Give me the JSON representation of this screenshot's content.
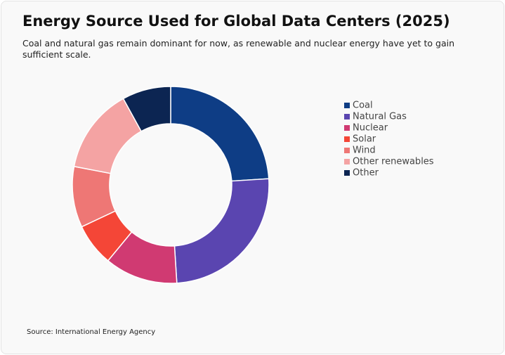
{
  "chart_data": {
    "type": "donut",
    "title": "Energy Source Used for Global Data Centers (2025)",
    "subtitle": "Coal and natural gas remain dominant for now, as renewable and nuclear energy have yet to gain sufficient scale.",
    "source": "Source: International Energy Agency",
    "categories": [
      "Coal",
      "Natural Gas",
      "Nuclear",
      "Solar",
      "Wind",
      "Other renewables",
      "Other"
    ],
    "values": [
      24,
      25,
      12,
      7,
      10,
      14,
      8
    ],
    "colors": [
      "#0e3d85",
      "#5a45b0",
      "#d03a72",
      "#f44637",
      "#ee7775",
      "#f4a3a3",
      "#0c2552"
    ],
    "legend": "right"
  }
}
